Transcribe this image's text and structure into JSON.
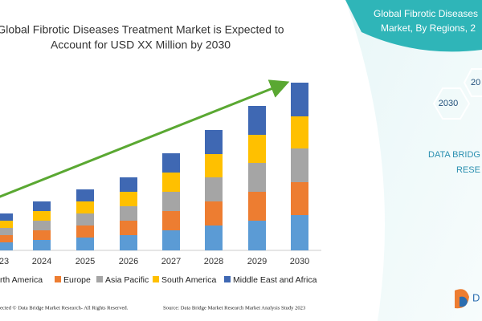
{
  "chart_data": {
    "type": "stacked-bar",
    "title": [
      "Global Fibrotic Diseases Treatment Market is Expected to",
      "Account for USD XX Million by 2030"
    ],
    "categories": [
      "23",
      "2024",
      "2025",
      "2026",
      "2027",
      "2028",
      "2029",
      "2030"
    ],
    "series": [
      {
        "name": "rth America",
        "color": "#5b9bd5",
        "values": [
          10,
          13,
          16,
          19,
          25,
          31,
          37,
          44
        ]
      },
      {
        "name": "Europe",
        "color": "#ed7d31",
        "values": [
          9,
          12,
          15,
          18,
          24,
          30,
          36,
          41
        ]
      },
      {
        "name": "Asia Pacific",
        "color": "#a5a5a5",
        "values": [
          9,
          12,
          15,
          18,
          24,
          30,
          36,
          42
        ]
      },
      {
        "name": "South America",
        "color": "#ffc000",
        "values": [
          9,
          12,
          15,
          18,
          24,
          29,
          35,
          40
        ]
      },
      {
        "name": "Middle East and Africa",
        "color": "#3f68b3",
        "values": [
          9,
          12,
          15,
          18,
          24,
          30,
          36,
          42
        ]
      }
    ],
    "ylim": [
      0,
      230
    ],
    "trend_arrow_color": "#5aa832"
  },
  "side_panel": {
    "title_lines": [
      "Global Fibrotic Diseases",
      "Market, By Regions, 2"
    ],
    "hexagons": [
      "2030",
      "20"
    ],
    "brand_lines": [
      "DATA BRIDG",
      "RESE"
    ]
  },
  "footer": {
    "copyright": "ected © Data Bridge Market Research- All Rights Reserved.",
    "source": "Source: Data Bridge Market Research Market Analysis Study 2023"
  },
  "logo_text": "D"
}
